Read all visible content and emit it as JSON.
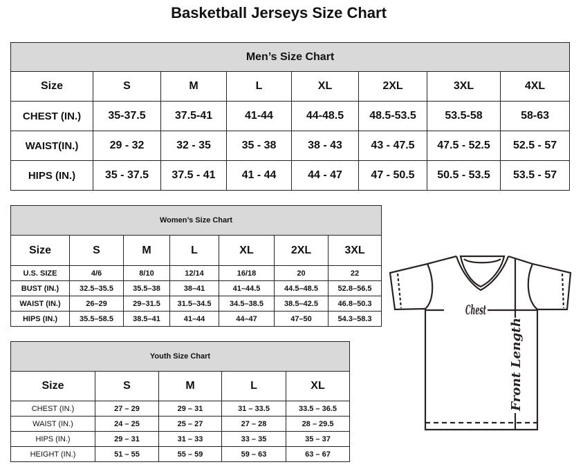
{
  "title": "Basketball Jerseys Size Chart",
  "men": {
    "title": "Men’s Size Chart",
    "rows": [
      [
        "Size",
        "S",
        "M",
        "L",
        "XL",
        "2XL",
        "3XL",
        "4XL"
      ],
      [
        "CHEST (IN.)",
        "35-37.5",
        "37.5-41",
        "41-44",
        "44-48.5",
        "48.5-53.5",
        "53.5-58",
        "58-63"
      ],
      [
        "WAIST(IN.)",
        "29 - 32",
        "32 - 35",
        "35 - 38",
        "38 - 43",
        "43 - 47.5",
        "47.5 - 52.5",
        "52.5 - 57"
      ],
      [
        "HIPS (IN.)",
        "35 - 37.5",
        "37.5 - 41",
        "41 - 44",
        "44 - 47",
        "47 - 50.5",
        "50.5 - 53.5",
        "53.5 - 57"
      ]
    ]
  },
  "women": {
    "title": "Women’s Size Chart",
    "rows": [
      [
        "Size",
        "S",
        "M",
        "L",
        "XL",
        "2XL",
        "3XL"
      ],
      [
        "U.S.  SIZE",
        "4/6",
        "8/10",
        "12/14",
        "16/18",
        "20",
        "22"
      ],
      [
        "BUST  (IN.)",
        "32.5–35.5",
        "35.5–38",
        "38–41",
        "41–44.5",
        "44.5–48.5",
        "52.8–56.5"
      ],
      [
        "WAIST  (IN.)",
        "26–29",
        "29–31.5",
        "31.5–34.5",
        "34.5–38.5",
        "38.5–42.5",
        "46.8–50.3"
      ],
      [
        "HIPS  (IN.)",
        "35.5–58.5",
        "38.5–41",
        "41–44",
        "44–47",
        "47–50",
        "54.3–58.3"
      ]
    ]
  },
  "youth": {
    "title": "Youth Size Chart",
    "rows": [
      [
        "Size",
        "S",
        "M",
        "L",
        "XL"
      ],
      [
        "CHEST  (IN.)",
        "27  –  29",
        "29  –  31",
        "31  –  33.5",
        "33.5  –  36.5"
      ],
      [
        "WAIST  (IN.)",
        "24  –  25",
        "25  –  27",
        "27  –  28",
        "28  –  29.5"
      ],
      [
        "HIPS  (IN.)",
        "29  –  31",
        "31  –  33",
        "33  –  35",
        "35  –  37"
      ],
      [
        "HEIGHT  (IN.)",
        "51  –  55",
        "55  –  59",
        "59  –  63",
        "63  –  67"
      ]
    ]
  },
  "diagram": {
    "chest_label": "Chest",
    "length_label": "Front Length",
    "icon": "t-shirt-icon"
  }
}
